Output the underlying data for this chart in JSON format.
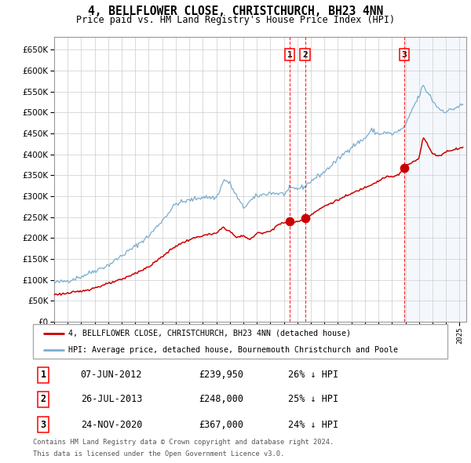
{
  "title": "4, BELLFLOWER CLOSE, CHRISTCHURCH, BH23 4NN",
  "subtitle": "Price paid vs. HM Land Registry's House Price Index (HPI)",
  "legend_line1": "4, BELLFLOWER CLOSE, CHRISTCHURCH, BH23 4NN (detached house)",
  "legend_line2": "HPI: Average price, detached house, Bournemouth Christchurch and Poole",
  "footer1": "Contains HM Land Registry data © Crown copyright and database right 2024.",
  "footer2": "This data is licensed under the Open Government Licence v3.0.",
  "transactions": [
    {
      "num": 1,
      "date": "07-JUN-2012",
      "price": 239950,
      "pct": "26%",
      "dir": "↓"
    },
    {
      "num": 2,
      "date": "26-JUL-2013",
      "price": 248000,
      "pct": "25%",
      "dir": "↓"
    },
    {
      "num": 3,
      "date": "24-NOV-2020",
      "price": 367000,
      "pct": "24%",
      "dir": "↓"
    }
  ],
  "transaction_dates_decimal": [
    2012.44,
    2013.57,
    2020.9
  ],
  "transaction_prices": [
    239950,
    248000,
    367000
  ],
  "vline_dates": [
    2012.44,
    2013.57,
    2020.9
  ],
  "shade_start": 2020.9,
  "red_line_color": "#cc0000",
  "blue_line_color": "#7aadcf",
  "shade_color": "#ddeeff",
  "grid_color": "#cccccc",
  "background_color": "#ffffff",
  "ylim": [
    0,
    680000
  ],
  "xlim_start": 1995.0,
  "xlim_end": 2025.5,
  "hpi_keypoints": [
    [
      1995.0,
      93000
    ],
    [
      1996.0,
      98000
    ],
    [
      1997.0,
      108000
    ],
    [
      1998.0,
      122000
    ],
    [
      1999.0,
      135000
    ],
    [
      2000.0,
      158000
    ],
    [
      2001.0,
      180000
    ],
    [
      2002.0,
      205000
    ],
    [
      2003.0,
      242000
    ],
    [
      2004.0,
      282000
    ],
    [
      2005.0,
      290000
    ],
    [
      2006.0,
      298000
    ],
    [
      2007.0,
      296000
    ],
    [
      2007.6,
      340000
    ],
    [
      2008.0,
      330000
    ],
    [
      2008.5,
      300000
    ],
    [
      2009.0,
      272000
    ],
    [
      2009.5,
      288000
    ],
    [
      2010.0,
      300000
    ],
    [
      2011.0,
      308000
    ],
    [
      2012.0,
      305000
    ],
    [
      2012.5,
      318000
    ],
    [
      2013.0,
      318000
    ],
    [
      2013.5,
      322000
    ],
    [
      2014.0,
      336000
    ],
    [
      2015.0,
      358000
    ],
    [
      2016.0,
      388000
    ],
    [
      2017.0,
      418000
    ],
    [
      2018.0,
      438000
    ],
    [
      2018.5,
      458000
    ],
    [
      2019.0,
      448000
    ],
    [
      2019.5,
      452000
    ],
    [
      2020.0,
      448000
    ],
    [
      2020.5,
      455000
    ],
    [
      2021.0,
      468000
    ],
    [
      2021.5,
      508000
    ],
    [
      2022.0,
      538000
    ],
    [
      2022.3,
      565000
    ],
    [
      2022.5,
      552000
    ],
    [
      2022.8,
      542000
    ],
    [
      2023.0,
      528000
    ],
    [
      2023.5,
      508000
    ],
    [
      2024.0,
      502000
    ],
    [
      2024.5,
      508000
    ],
    [
      2025.2,
      518000
    ]
  ],
  "red_keypoints": [
    [
      1995.0,
      65000
    ],
    [
      1996.0,
      68000
    ],
    [
      1997.0,
      73000
    ],
    [
      1998.0,
      81000
    ],
    [
      1999.0,
      91000
    ],
    [
      2000.0,
      101000
    ],
    [
      2001.0,
      116000
    ],
    [
      2002.0,
      131000
    ],
    [
      2003.0,
      156000
    ],
    [
      2004.0,
      181000
    ],
    [
      2005.0,
      196000
    ],
    [
      2006.0,
      206000
    ],
    [
      2007.0,
      211000
    ],
    [
      2007.5,
      226000
    ],
    [
      2008.0,
      216000
    ],
    [
      2008.5,
      201000
    ],
    [
      2009.0,
      206000
    ],
    [
      2009.5,
      196000
    ],
    [
      2010.0,
      211000
    ],
    [
      2011.0,
      216000
    ],
    [
      2011.5,
      231000
    ],
    [
      2012.0,
      236000
    ],
    [
      2012.44,
      239950
    ],
    [
      2013.0,
      238000
    ],
    [
      2013.57,
      248000
    ],
    [
      2014.0,
      256000
    ],
    [
      2015.0,
      276000
    ],
    [
      2016.0,
      291000
    ],
    [
      2017.0,
      306000
    ],
    [
      2018.0,
      321000
    ],
    [
      2019.0,
      336000
    ],
    [
      2019.5,
      346000
    ],
    [
      2020.0,
      346000
    ],
    [
      2020.5,
      351000
    ],
    [
      2020.9,
      367000
    ],
    [
      2021.0,
      371000
    ],
    [
      2021.5,
      381000
    ],
    [
      2022.0,
      391000
    ],
    [
      2022.3,
      441000
    ],
    [
      2022.5,
      431000
    ],
    [
      2023.0,
      401000
    ],
    [
      2023.5,
      396000
    ],
    [
      2024.0,
      406000
    ],
    [
      2024.5,
      411000
    ],
    [
      2025.2,
      416000
    ]
  ]
}
